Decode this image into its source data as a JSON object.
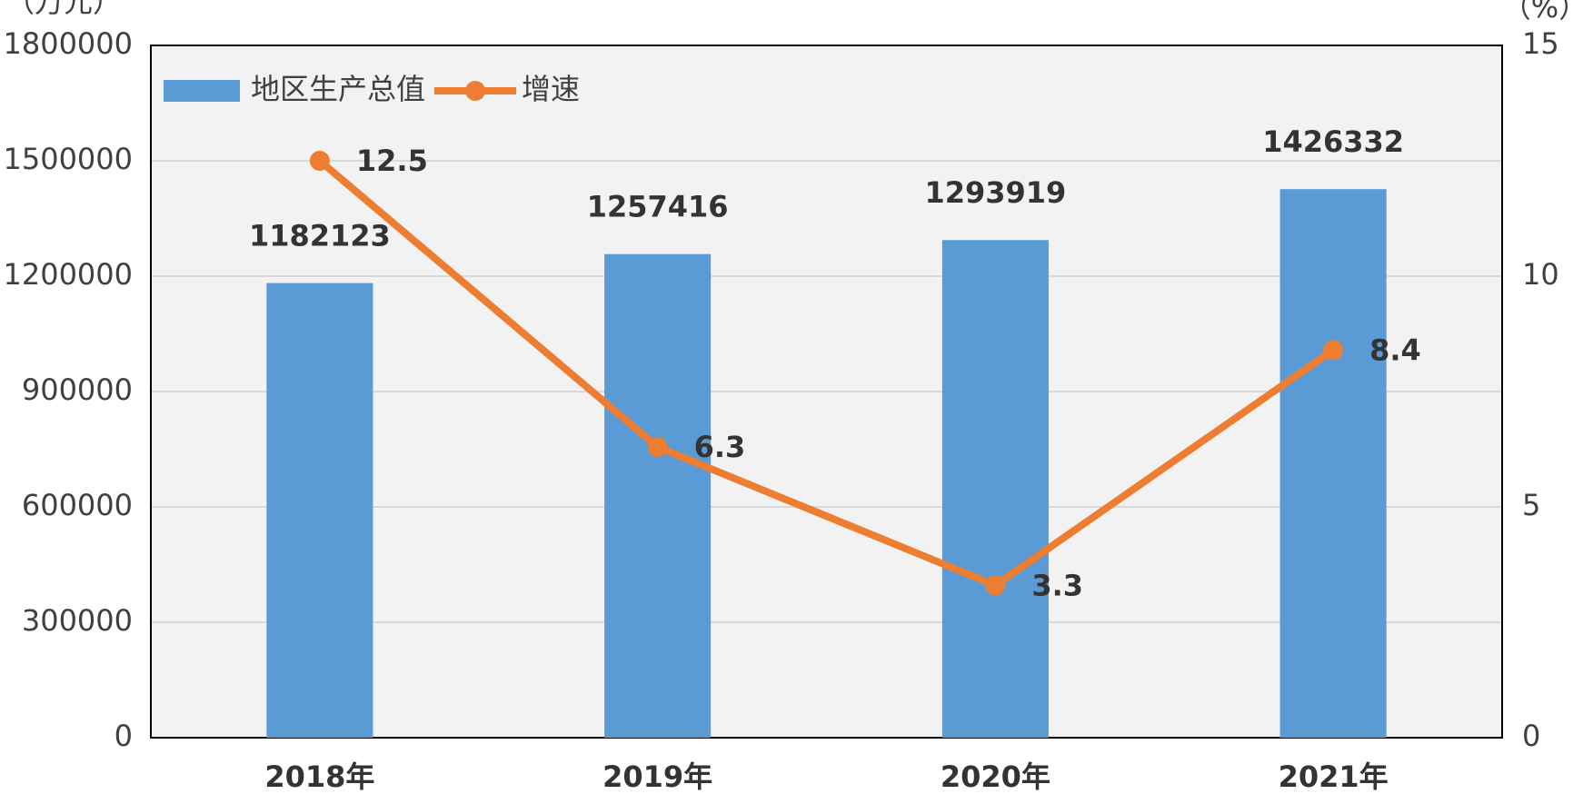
{
  "chart_data": {
    "type": "bar_line",
    "y_label": "（万元）",
    "y2_label": "（%）",
    "categories": [
      "2018年",
      "2019年",
      "2020年",
      "2021年"
    ],
    "series": [
      {
        "name": "地区生产总值",
        "type": "bar",
        "color": "#5b9bd5",
        "values": [
          1182123,
          1257416,
          1293919,
          1426332
        ]
      },
      {
        "name": "增速",
        "type": "line",
        "axis": "y2",
        "color": "#ed7d31",
        "values": [
          12.5,
          6.3,
          3.3,
          8.4
        ]
      }
    ],
    "ylim": [
      0,
      1800000
    ],
    "yticks": [
      0,
      300000,
      600000,
      900000,
      1200000,
      1500000,
      1800000
    ],
    "y2lim": [
      0,
      15
    ],
    "y2ticks": [
      0,
      5,
      10,
      15
    ],
    "grid": true,
    "legend": "upper left",
    "plot_background": "#f2f2f2"
  }
}
